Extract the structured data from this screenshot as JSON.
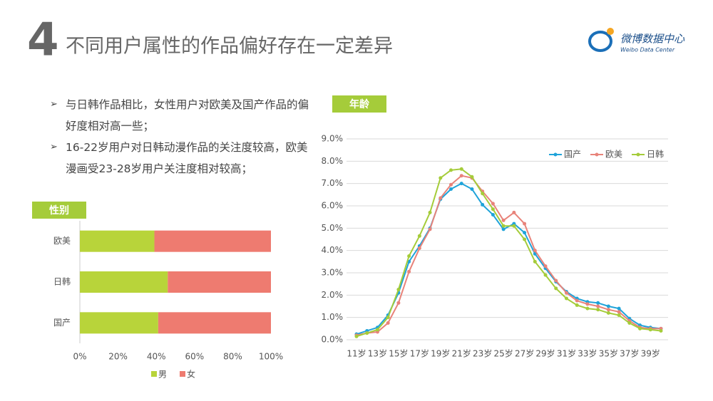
{
  "slide": {
    "number": "4",
    "title": "不同用户属性的作品偏好存在一定差异",
    "logo": {
      "name": "微博数据中心",
      "subtitle": "Weibo Data Center"
    },
    "bullets": [
      "与日韩作品相比，女性用户对欧美及国产作品的偏好度相对高一些；",
      "16-22岁用户对日韩动漫作品的关注度较高，欧美漫画受23-28岁用户关注度相对较高；"
    ]
  },
  "chart_data": [
    {
      "type": "bar",
      "orientation": "horizontal",
      "stacked": true,
      "tag": "性别",
      "categories": [
        "欧美",
        "日韩",
        "国产"
      ],
      "series": [
        {
          "name": "男",
          "color": "#b8d43a",
          "values": [
            39,
            46,
            41
          ]
        },
        {
          "name": "女",
          "color": "#ee7b70",
          "values": [
            61,
            54,
            59
          ]
        }
      ],
      "xlim": [
        0,
        100
      ],
      "xticks": [
        {
          "value": 0,
          "label": "0%"
        },
        {
          "value": 20,
          "label": "20%"
        },
        {
          "value": 40,
          "label": "40%"
        },
        {
          "value": 60,
          "label": "60%"
        },
        {
          "value": 80,
          "label": "80%"
        },
        {
          "value": 100,
          "label": "100%"
        }
      ],
      "legend": "bottom"
    },
    {
      "type": "line",
      "tag": "年龄",
      "categories": [
        "11岁",
        null,
        "13岁",
        null,
        "15岁",
        null,
        "17岁",
        null,
        "19岁",
        null,
        "21岁",
        null,
        "23岁",
        null,
        "25岁",
        null,
        "27岁",
        null,
        "29岁",
        null,
        "31岁",
        null,
        "33岁",
        null,
        "35岁",
        null,
        "37岁",
        null,
        "39岁",
        null
      ],
      "series": [
        {
          "name": "国产",
          "color": "#1fa3d9",
          "values": [
            0.25,
            0.4,
            0.55,
            1.1,
            2.1,
            3.5,
            4.2,
            5.0,
            6.3,
            6.75,
            7.0,
            6.75,
            6.05,
            5.6,
            4.95,
            5.2,
            4.8,
            3.85,
            3.2,
            2.6,
            2.15,
            1.85,
            1.7,
            1.65,
            1.5,
            1.4,
            0.95,
            0.65,
            0.55,
            0.5
          ]
        },
        {
          "name": "欧美",
          "color": "#e8837a",
          "values": [
            0.2,
            0.3,
            0.35,
            0.75,
            1.65,
            3.05,
            4.1,
            4.95,
            6.35,
            6.95,
            7.35,
            7.25,
            6.65,
            6.1,
            5.35,
            5.7,
            5.2,
            4.0,
            3.3,
            2.65,
            2.1,
            1.75,
            1.6,
            1.5,
            1.35,
            1.25,
            0.85,
            0.55,
            0.5,
            0.5
          ]
        },
        {
          "name": "日韩",
          "color": "#a5cc3a",
          "values": [
            0.15,
            0.3,
            0.45,
            1.0,
            2.25,
            3.75,
            4.65,
            5.7,
            7.25,
            7.6,
            7.65,
            7.3,
            6.55,
            5.85,
            5.1,
            5.1,
            4.5,
            3.5,
            2.9,
            2.3,
            1.85,
            1.55,
            1.4,
            1.35,
            1.2,
            1.1,
            0.75,
            0.5,
            0.45,
            0.4
          ]
        }
      ],
      "ylim": [
        0,
        9
      ],
      "yticks": [
        {
          "value": 0,
          "label": "0.0%"
        },
        {
          "value": 1,
          "label": "1.0%"
        },
        {
          "value": 2,
          "label": "2.0%"
        },
        {
          "value": 3,
          "label": "3.0%"
        },
        {
          "value": 4,
          "label": "4.0%"
        },
        {
          "value": 5,
          "label": "5.0%"
        },
        {
          "value": 6,
          "label": "6.0%"
        },
        {
          "value": 7,
          "label": "7.0%"
        },
        {
          "value": 8,
          "label": "8.0%"
        },
        {
          "value": 9,
          "label": "9.0%"
        }
      ],
      "grid": true,
      "legend": "top-right"
    }
  ]
}
